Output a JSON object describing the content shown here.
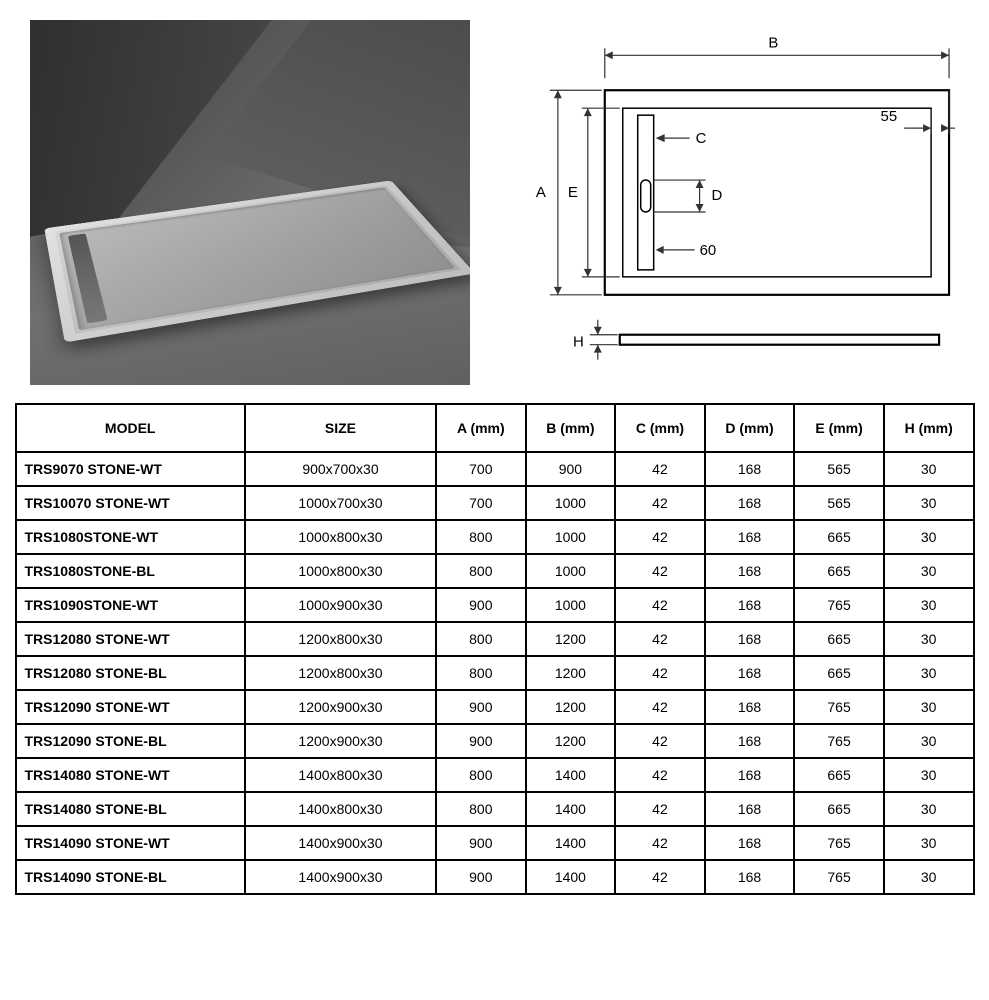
{
  "diagram": {
    "labels": {
      "A": "A",
      "B": "B",
      "C": "C",
      "D": "D",
      "E": "E",
      "H": "H",
      "val55": "55",
      "val60": "60"
    },
    "colors": {
      "line": "#000000",
      "dim": "#333333",
      "bg": "#ffffff"
    }
  },
  "table": {
    "columns": [
      "MODEL",
      "SIZE",
      "A (mm)",
      "B (mm)",
      "C (mm)",
      "D (mm)",
      "E (mm)",
      "H (mm)"
    ],
    "rows": [
      [
        "TRS9070 STONE-WT",
        "900x700x30",
        "700",
        "900",
        "42",
        "168",
        "565",
        "30"
      ],
      [
        "TRS10070 STONE-WT",
        "1000x700x30",
        "700",
        "1000",
        "42",
        "168",
        "565",
        "30"
      ],
      [
        "TRS1080STONE-WT",
        "1000x800x30",
        "800",
        "1000",
        "42",
        "168",
        "665",
        "30"
      ],
      [
        "TRS1080STONE-BL",
        "1000x800x30",
        "800",
        "1000",
        "42",
        "168",
        "665",
        "30"
      ],
      [
        "TRS1090STONE-WT",
        "1000x900x30",
        "900",
        "1000",
        "42",
        "168",
        "765",
        "30"
      ],
      [
        "TRS12080 STONE-WT",
        "1200x800x30",
        "800",
        "1200",
        "42",
        "168",
        "665",
        "30"
      ],
      [
        "TRS12080 STONE-BL",
        "1200x800x30",
        "800",
        "1200",
        "42",
        "168",
        "665",
        "30"
      ],
      [
        "TRS12090 STONE-WT",
        "1200x900x30",
        "900",
        "1200",
        "42",
        "168",
        "765",
        "30"
      ],
      [
        "TRS12090 STONE-BL",
        "1200x900x30",
        "900",
        "1200",
        "42",
        "168",
        "765",
        "30"
      ],
      [
        "TRS14080 STONE-WT",
        "1400x800x30",
        "800",
        "1400",
        "42",
        "168",
        "665",
        "30"
      ],
      [
        "TRS14080 STONE-BL",
        "1400x800x30",
        "800",
        "1400",
        "42",
        "168",
        "665",
        "30"
      ],
      [
        "TRS14090 STONE-WT",
        "1400x900x30",
        "900",
        "1400",
        "42",
        "168",
        "765",
        "30"
      ],
      [
        "TRS14090 STONE-BL",
        "1400x900x30",
        "900",
        "1400",
        "42",
        "168",
        "765",
        "30"
      ]
    ],
    "header_bg": "#ffffff",
    "border_color": "#000000",
    "font_size": 14
  }
}
